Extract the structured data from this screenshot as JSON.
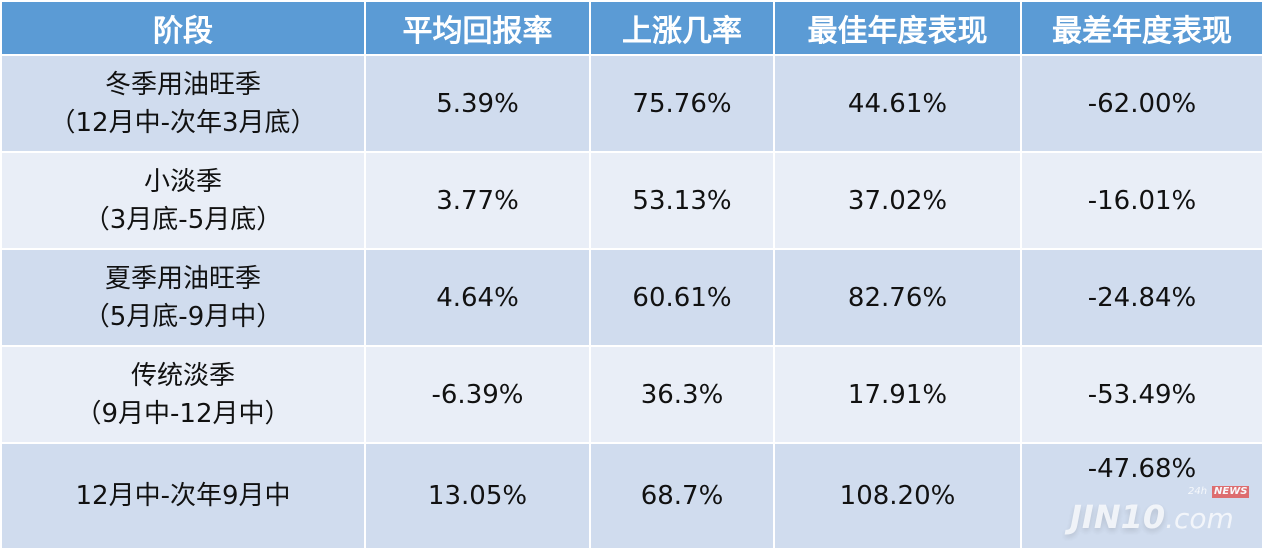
{
  "chart_data": {
    "type": "table",
    "headers": [
      "阶段",
      "平均回报率",
      "上涨几率",
      "最佳年度表现",
      "最差年度表现"
    ],
    "rows": [
      {
        "stage": [
          "冬季用油旺季",
          "（12月中-次年3月底）"
        ],
        "cells": [
          "5.39%",
          "75.76%",
          "44.61%",
          "-62.00%"
        ]
      },
      {
        "stage": [
          "小淡季",
          "（3月底-5月底）"
        ],
        "cells": [
          "3.77%",
          "53.13%",
          "37.02%",
          "-16.01%"
        ]
      },
      {
        "stage": [
          "夏季用油旺季",
          "（5月底-9月中）"
        ],
        "cells": [
          "4.64%",
          "60.61%",
          "82.76%",
          "-24.84%"
        ]
      },
      {
        "stage": [
          "传统淡季",
          "（9月中-12月中）"
        ],
        "cells": [
          "-6.39%",
          "36.3%",
          "17.91%",
          "-53.49%"
        ]
      },
      {
        "stage": [
          "12月中-次年9月中"
        ],
        "cells": [
          "13.05%",
          "68.7%",
          "108.20%",
          "-47.68%"
        ]
      }
    ]
  },
  "colors": {
    "header": "#5b9bd5",
    "row_odd": "#d0dcee",
    "row_even": "#e9eef7"
  },
  "watermark": {
    "brand": "JIN10",
    "suffix": ".com",
    "tag24": "24h",
    "news": "NEWS"
  }
}
